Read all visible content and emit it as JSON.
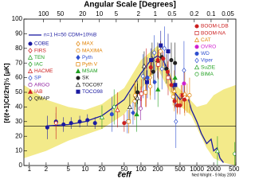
{
  "chart_data": {
    "type": "scatter",
    "title": "Angular Scale [Degrees]",
    "x_label": "ℓeff",
    "y_label": "[ℓ(ℓ+1)Cℓ/2π]½ [μK]",
    "footer": "Ned Wright - 9 May 2000",
    "log_x": true,
    "xlim": [
      0.8,
      5000
    ],
    "xticks": [
      1,
      2,
      5,
      10,
      20,
      50,
      100,
      200,
      500,
      1000,
      2000,
      5000
    ],
    "x2lim": [
      225,
      0.036
    ],
    "x2ticks": [
      100,
      50,
      20,
      10,
      5,
      2,
      1,
      0.5,
      0.2,
      0.1,
      0.05
    ],
    "ylim": [
      0,
      100
    ],
    "yticks": [
      0,
      10,
      20,
      30,
      40,
      50,
      60,
      70,
      80,
      90,
      100
    ],
    "reference_line": 27,
    "band": {
      "color": "#f3ea8a",
      "x": [
        0.8,
        2,
        5,
        10,
        20,
        50,
        100,
        200,
        400,
        800,
        1000,
        1500,
        2000,
        3000,
        5000
      ],
      "lower": [
        5,
        10,
        17,
        21,
        25,
        35,
        52,
        66,
        44,
        34,
        26,
        12,
        5,
        2,
        0
      ],
      "upper": [
        55,
        45,
        40,
        38,
        42,
        53,
        72,
        82,
        56,
        44,
        40,
        42,
        48,
        52,
        55
      ]
    },
    "theory": {
      "name": "n=1 H=50 CDM+10%B",
      "color": "#1a1aa0",
      "x": [
        2,
        5,
        10,
        20,
        50,
        100,
        150,
        200,
        250,
        300,
        400,
        500,
        600,
        700,
        800,
        1000,
        1200,
        1500,
        1800,
        2000,
        2300,
        2600,
        3000
      ],
      "values": [
        27,
        28,
        30,
        34,
        45,
        63,
        72,
        75,
        72,
        65,
        50,
        45,
        48,
        46,
        38,
        30,
        22,
        15,
        18,
        10,
        12,
        5,
        2
      ]
    },
    "series": [
      {
        "name": "COBE",
        "color": "#1a1aa0",
        "marker": "circle",
        "x": [
          2.1,
          3,
          4.1,
          5.6,
          8,
          11,
          15
        ],
        "values": [
          26,
          30,
          28,
          29,
          30,
          31,
          29
        ],
        "errors": [
          8,
          6,
          5,
          4,
          4,
          4,
          4
        ]
      },
      {
        "name": "FIRS",
        "color": "#cc2020",
        "marker": "open-diamond",
        "x": [
          3
        ],
        "values": [
          29
        ],
        "errors": [
          11
        ]
      },
      {
        "name": "TEN",
        "color": "#20a020",
        "marker": "open-triangle",
        "x": [
          20
        ],
        "values": [
          33
        ],
        "errors": [
          8
        ]
      },
      {
        "name": "IAC",
        "color": "#20a020",
        "marker": "open-diamond",
        "x": [
          33
        ],
        "values": [
          40
        ],
        "errors": [
          12
        ]
      },
      {
        "name": "HACME",
        "color": "#cc2020",
        "marker": "open-triangle",
        "x": [
          38
        ],
        "values": [
          38
        ],
        "errors": [
          12
        ]
      },
      {
        "name": "SP",
        "color": "#3050d0",
        "marker": "open-diamond",
        "x": [
          57
        ],
        "values": [
          30
        ],
        "errors": [
          8
        ]
      },
      {
        "name": "ARGO",
        "color": "#9020a0",
        "marker": "open-circle",
        "x": [
          98
        ],
        "values": [
          39
        ],
        "errors": [
          8
        ]
      },
      {
        "name": "IAB",
        "color": "#cc2020",
        "marker": "triangle",
        "x": [
          125
        ],
        "values": [
          60
        ],
        "errors": [
          20
        ]
      },
      {
        "name": "QMAP",
        "color": "#202020",
        "marker": "open-diamond",
        "x": [
          80,
          126
        ],
        "values": [
          47,
          59
        ],
        "errors": [
          7,
          6
        ]
      },
      {
        "name": "MAX",
        "color": "#e08000",
        "marker": "open-diamond",
        "x": [
          78,
          145
        ],
        "values": [
          48,
          60
        ],
        "errors": [
          10,
          12
        ]
      },
      {
        "name": "MAXIMA",
        "color": "#e08000",
        "marker": "open-circle",
        "x": [
          77,
          147,
          223,
          300,
          375,
          447,
          522,
          597,
          671,
          742
        ],
        "values": [
          44,
          54,
          78,
          65,
          47,
          41,
          48,
          47,
          46,
          48
        ],
        "errors": [
          13,
          9,
          7,
          6,
          6,
          6,
          7,
          8,
          10,
          12
        ]
      },
      {
        "name": "Pyth",
        "color": "#3050d0",
        "marker": "diamond",
        "x": [
          72,
          176
        ],
        "values": [
          36,
          57
        ],
        "errors": [
          8,
          12
        ]
      },
      {
        "name": "Pyth V",
        "color": "#e08000",
        "marker": "open-square",
        "x": [
          60,
          120
        ],
        "values": [
          30,
          50
        ],
        "errors": [
          8,
          10
        ]
      },
      {
        "name": "MSAM",
        "color": "#20a020",
        "marker": "triangle",
        "x": [
          84,
          201,
          407
        ],
        "values": [
          35,
          52,
          60
        ],
        "errors": [
          12,
          12,
          14
        ]
      },
      {
        "name": "SK",
        "color": "#202020",
        "marker": "circle",
        "x": [
          87,
          166,
          237,
          286,
          349,
          407
        ],
        "values": [
          50,
          64,
          74,
          66,
          72,
          70
        ],
        "errors": [
          8,
          8,
          9,
          10,
          12,
          14
        ]
      },
      {
        "name": "TOCO97",
        "color": "#202020",
        "marker": "open-triangle",
        "x": [
          63,
          86,
          114,
          158,
          199
        ],
        "values": [
          40,
          46,
          68,
          73,
          72
        ],
        "errors": [
          9,
          10,
          10,
          11,
          12
        ]
      },
      {
        "name": "TOCO98",
        "color": "#1a1aa0",
        "marker": "square",
        "x": [
          128,
          152,
          226,
          306,
          409
        ],
        "values": [
          57,
          72,
          82,
          78,
          55
        ],
        "errors": [
          8,
          8,
          10,
          12,
          15
        ]
      },
      {
        "name": "BOOM-LDB",
        "color": "#cc2020",
        "marker": "circle",
        "x": [
          50,
          100,
          150,
          200,
          250,
          300,
          350,
          400,
          450,
          500,
          550,
          600
        ],
        "values": [
          29,
          49,
          67,
          72,
          73,
          64,
          55,
          44,
          41,
          41,
          48,
          45
        ],
        "errors": [
          6,
          5,
          5,
          5,
          5,
          5,
          5,
          5,
          5,
          6,
          7,
          9
        ]
      },
      {
        "name": "BOOM-NA",
        "color": "#cc2020",
        "marker": "open-square",
        "x": [
          102,
          204,
          306
        ],
        "values": [
          49,
          69,
          60
        ],
        "errors": [
          10,
          10,
          12
        ]
      },
      {
        "name": "CAT",
        "color": "#e08000",
        "marker": "open-triangle",
        "x": [
          396,
          608
        ],
        "values": [
          51,
          49
        ],
        "errors": [
          14,
          15
        ]
      },
      {
        "name": "OVRO",
        "color": "#d020d0",
        "marker": "circle",
        "x": [
          589
        ],
        "values": [
          56
        ],
        "errors": [
          8
        ]
      },
      {
        "name": "WD",
        "color": "#3050d0",
        "marker": "circle",
        "x": [
          30,
          130
        ],
        "values": [
          35,
          60
        ],
        "errors": [
          12,
          14
        ]
      },
      {
        "name": "Viper",
        "color": "#3050d0",
        "marker": "open-diamond",
        "x": [
          108,
          173,
          237,
          263,
          422,
          589
        ],
        "values": [
          61,
          77,
          66,
          80,
          30,
          65
        ],
        "errors": [
          15,
          12,
          14,
          15,
          18,
          20
        ]
      },
      {
        "name": "SuZIE",
        "color": "#20a020",
        "marker": "open-triangle",
        "x": [
          2340
        ],
        "values": [
          10
        ],
        "errors": [
          10
        ]
      },
      {
        "name": "BIMA",
        "color": "#20a020",
        "marker": "open-circle",
        "x": [
          4800
        ],
        "values": [
          8
        ],
        "errors": [
          8
        ]
      }
    ]
  }
}
